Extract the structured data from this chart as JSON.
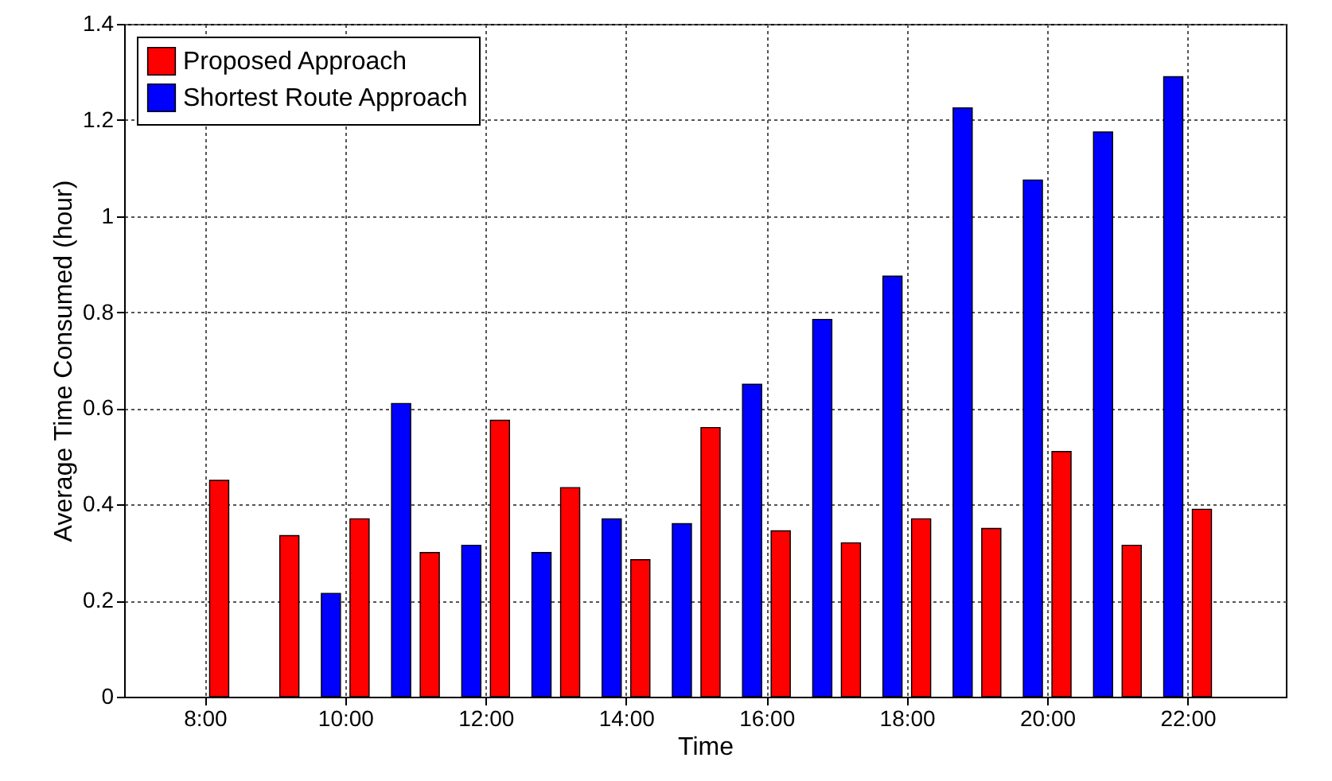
{
  "chart_data": {
    "type": "bar",
    "xlabel": "Time",
    "ylabel": "Average Time Consumed (hour)",
    "x": [
      8,
      9,
      10,
      11,
      12,
      13,
      14,
      15,
      16,
      17,
      18,
      19,
      20,
      21,
      22
    ],
    "series": [
      {
        "name": "Proposed Approach",
        "color": "#ff0000",
        "values": [
          0.45,
          0.335,
          0.37,
          0.3,
          0.575,
          0.435,
          0.285,
          0.56,
          0.345,
          0.32,
          0.37,
          0.35,
          0.51,
          0.315,
          0.39
        ]
      },
      {
        "name": "Shortest Route Approach",
        "color": "#0000ff",
        "values": [
          null,
          null,
          0.215,
          0.61,
          0.315,
          0.3,
          0.37,
          0.36,
          0.65,
          0.785,
          0.875,
          1.225,
          1.075,
          1.175,
          1.29
        ]
      }
    ],
    "xlim": [
      6.85,
      23.4
    ],
    "xticks": [
      {
        "value": 8,
        "label": "8:00"
      },
      {
        "value": 10,
        "label": "10:00"
      },
      {
        "value": 12,
        "label": "12:00"
      },
      {
        "value": 14,
        "label": "14:00"
      },
      {
        "value": 16,
        "label": "16:00"
      },
      {
        "value": 18,
        "label": "18:00"
      },
      {
        "value": 20,
        "label": "20:00"
      },
      {
        "value": 22,
        "label": "22:00"
      }
    ],
    "ylim": [
      0,
      1.4
    ],
    "yticks": [
      0,
      0.2,
      0.4,
      0.6,
      0.8,
      1,
      1.2,
      1.4
    ],
    "grid": true,
    "legend": "top left"
  }
}
